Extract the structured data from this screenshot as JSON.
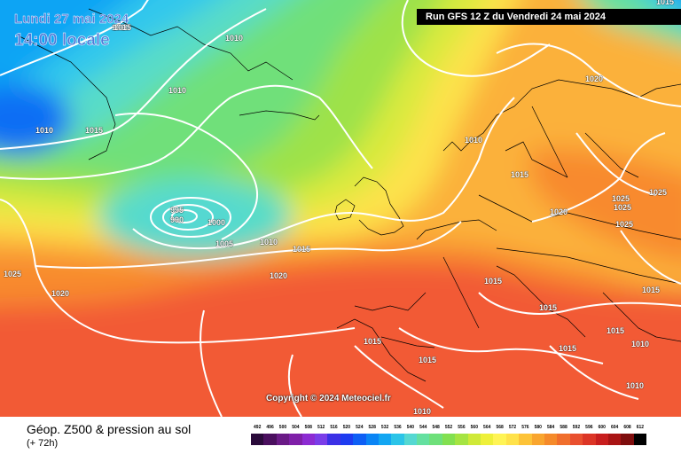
{
  "header": {
    "date": "Lundi 27 mai 2024",
    "local_time": "14:00 locale",
    "run": "Run GFS 12 Z du Vendredi 24 mai 2024"
  },
  "copyright": "Copyright © 2024 Meteociel.fr",
  "footer": {
    "title": "Géop. Z500 & pression au sol",
    "subtitle": "(+ 72h)"
  },
  "isobar_labels": [
    "1015",
    "1010",
    "1015",
    "1010",
    "1010",
    "1015",
    "1010",
    "1020",
    "995",
    "990",
    "1000",
    "1005",
    "1010",
    "1015",
    "1025",
    "1020",
    "1020",
    "1010",
    "1015",
    "1020",
    "1025",
    "1025",
    "1025",
    "1015",
    "1015",
    "1015",
    "1015",
    "1015",
    "1010",
    "1025",
    "1015",
    "1015",
    "1010",
    "1010"
  ],
  "legend": {
    "values": [
      "492",
      "496",
      "500",
      "504",
      "508",
      "512",
      "516",
      "520",
      "524",
      "528",
      "532",
      "536",
      "540",
      "544",
      "548",
      "552",
      "556",
      "560",
      "564",
      "568",
      "572",
      "576",
      "580",
      "584",
      "588",
      "592",
      "596",
      "600",
      "604",
      "608",
      "612"
    ],
    "colors": [
      "#2a0a3a",
      "#4a0f5e",
      "#6a1a86",
      "#7f1fa8",
      "#8c2bd2",
      "#7a3de8",
      "#3b30e6",
      "#1e3cf0",
      "#0e5ff5",
      "#0a85f5",
      "#13a6f2",
      "#2bc4e8",
      "#55d8d2",
      "#64e0a0",
      "#6ee07a",
      "#82e050",
      "#a5e442",
      "#cfe938",
      "#eef03a",
      "#fff455",
      "#ffe24a",
      "#fdc338",
      "#f9a52e",
      "#f58a2a",
      "#f06e2c",
      "#e9502f",
      "#dc3526",
      "#c81e1e",
      "#a91414",
      "#7e0d0d",
      "#000000"
    ]
  }
}
